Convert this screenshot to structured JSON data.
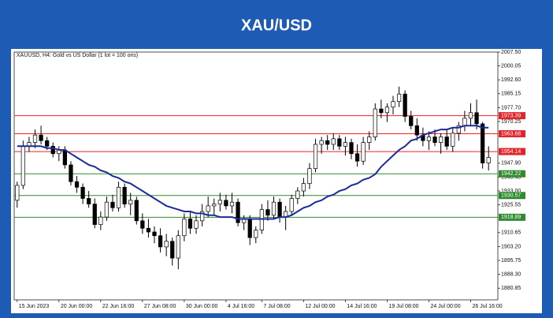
{
  "chart_data": {
    "type": "candlestick",
    "title": "XAU/USD",
    "subtitle": "XAUUSD, H4:  Gold vs US Dollar  (1 lot = 100 ons)",
    "categories": [
      "15 Jun 2023",
      null,
      null,
      null,
      null,
      null,
      null,
      "20 Jun 00:00",
      null,
      null,
      null,
      null,
      null,
      null,
      "22 Jun 16:00",
      null,
      null,
      null,
      null,
      null,
      null,
      "27 Jun 08:00",
      null,
      null,
      null,
      null,
      null,
      null,
      "30 Jun 00:00",
      null,
      null,
      null,
      null,
      null,
      null,
      "4 Jul 16:00",
      null,
      null,
      null,
      null,
      null,
      "7 Jul 08:00",
      null,
      null,
      null,
      null,
      null,
      null,
      "12 Jul 00:00",
      null,
      null,
      null,
      null,
      null,
      null,
      "14 Jul 16:00",
      null,
      null,
      null,
      null,
      null,
      null,
      "19 Jul 08:00",
      null,
      null,
      null,
      null,
      null,
      null,
      "24 Jul 00:00",
      null,
      null,
      null,
      null,
      null,
      null,
      "26 Jul 16:00",
      null,
      null,
      null
    ],
    "open": [
      1928,
      1936,
      1957,
      1959,
      1963,
      1960,
      1957,
      1953,
      1955,
      1947,
      1938,
      1935,
      1929,
      1926,
      1915,
      1919,
      1927,
      1924,
      1935,
      1926,
      1928,
      1917,
      1913,
      1911,
      1909,
      1903,
      1906,
      1897,
      1909,
      1918,
      1913,
      1917,
      1922,
      1925,
      1926,
      1928,
      1925,
      1927,
      1916,
      1918,
      1908,
      1912,
      1923,
      1920,
      1927,
      1919,
      1922,
      1929,
      1933,
      1937,
      1945,
      1958,
      1960,
      1958,
      1961,
      1957,
      1959,
      1953,
      1949,
      1959,
      1962,
      1977,
      1975,
      1978,
      1981,
      1985,
      1973,
      1968,
      1963,
      1960,
      1962,
      1959,
      1962,
      1957,
      1964,
      1968,
      1972,
      1975,
      1969,
      1948
    ],
    "high": [
      1938,
      1960,
      1962,
      1966,
      1968,
      1962,
      1959,
      1957,
      1957,
      1949,
      1941,
      1937,
      1933,
      1929,
      1922,
      1930,
      1931,
      1938,
      1937,
      1932,
      1930,
      1921,
      1918,
      1914,
      1913,
      1910,
      1908,
      1912,
      1921,
      1922,
      1920,
      1926,
      1930,
      1929,
      1932,
      1931,
      1932,
      1929,
      1920,
      1920,
      1914,
      1926,
      1928,
      1930,
      1929,
      1925,
      1931,
      1935,
      1940,
      1948,
      1961,
      1962,
      1963,
      1964,
      1963,
      1962,
      1961,
      1958,
      1962,
      1965,
      1980,
      1982,
      1980,
      1984,
      1989,
      1987,
      1976,
      1972,
      1967,
      1965,
      1966,
      1964,
      1966,
      1967,
      1970,
      1976,
      1980,
      1982,
      1970,
      1957
    ],
    "low": [
      1924,
      1934,
      1954,
      1956,
      1958,
      1955,
      1951,
      1949,
      1945,
      1936,
      1932,
      1926,
      1924,
      1913,
      1912,
      1917,
      1922,
      1922,
      1924,
      1920,
      1915,
      1910,
      1908,
      1905,
      1900,
      1898,
      1893,
      1891,
      1906,
      1910,
      1910,
      1914,
      1919,
      1920,
      1922,
      1923,
      1921,
      1914,
      1912,
      1904,
      1905,
      1910,
      1917,
      1918,
      1916,
      1912,
      1920,
      1926,
      1930,
      1934,
      1943,
      1953,
      1955,
      1955,
      1955,
      1952,
      1950,
      1946,
      1947,
      1955,
      1960,
      1972,
      1970,
      1974,
      1978,
      1970,
      1966,
      1960,
      1957,
      1955,
      1957,
      1953,
      1955,
      1954,
      1960,
      1965,
      1968,
      1966,
      1945,
      1944
    ],
    "close": [
      1936,
      1957,
      1959,
      1963,
      1960,
      1957,
      1953,
      1955,
      1947,
      1938,
      1935,
      1929,
      1926,
      1915,
      1919,
      1927,
      1924,
      1935,
      1926,
      1928,
      1917,
      1913,
      1911,
      1909,
      1903,
      1906,
      1897,
      1909,
      1918,
      1913,
      1917,
      1922,
      1925,
      1926,
      1928,
      1925,
      1927,
      1916,
      1918,
      1908,
      1912,
      1923,
      1920,
      1927,
      1919,
      1922,
      1929,
      1933,
      1937,
      1945,
      1958,
      1960,
      1958,
      1961,
      1957,
      1959,
      1953,
      1949,
      1959,
      1962,
      1977,
      1975,
      1978,
      1981,
      1985,
      1973,
      1968,
      1963,
      1960,
      1962,
      1959,
      1962,
      1957,
      1964,
      1968,
      1972,
      1975,
      1969,
      1948,
      1951
    ],
    "moving_average": {
      "color": "#1b2a96",
      "values": [
        1957,
        1957,
        1957,
        1957,
        1957,
        1956,
        1956,
        1955,
        1955,
        1953,
        1951,
        1949,
        1947,
        1946,
        1944,
        1943,
        1941,
        1940,
        1938,
        1937,
        1935,
        1933,
        1931,
        1929,
        1927,
        1925,
        1924,
        1923,
        1922,
        1922,
        1921,
        1921,
        1920,
        1920,
        1919,
        1919,
        1919,
        1918,
        1918,
        1918,
        1918,
        1918,
        1918,
        1918,
        1919,
        1919,
        1920,
        1922,
        1924,
        1925,
        1927,
        1928,
        1930,
        1931,
        1933,
        1934,
        1936,
        1937,
        1939,
        1940,
        1942,
        1946,
        1949,
        1952,
        1955,
        1957,
        1960,
        1961,
        1963,
        1964,
        1965,
        1966,
        1966,
        1967,
        1967,
        1968,
        1968,
        1968,
        1967,
        1967
      ]
    },
    "levels": [
      {
        "value": 1973.39,
        "color": "#e3242b"
      },
      {
        "value": 1963.68,
        "color": "#e3242b"
      },
      {
        "value": 1954.14,
        "color": "#e3242b"
      },
      {
        "value": 1942.22,
        "color": "#2e8b2e"
      },
      {
        "value": 1930.57,
        "color": "#2e8b2e"
      },
      {
        "value": 1918.89,
        "color": "#2e8b2e"
      }
    ],
    "ylim": [
      1874.6,
      2007.5
    ],
    "yticks": [
      {
        "value": 2007.5,
        "label": "2007.50"
      },
      2000.05,
      {
        "value": 1992.6,
        "label": "1992.60"
      },
      1985.15,
      {
        "value": 1977.7,
        "label": "1977.70"
      },
      1970.25,
      {
        "value": 1947.9,
        "label": "1947.90"
      },
      1940.45,
      {
        "value": 1933,
        "label": "1933.00"
      },
      1925.55,
      1910.65,
      {
        "value": 1903.2,
        "label": "1903.20"
      },
      1895.75,
      {
        "value": 1888.3,
        "label": "1888.30"
      },
      1880.85
    ],
    "up_color": "#ffffff",
    "down_color": "#000000",
    "background": "#1e5bb5"
  }
}
